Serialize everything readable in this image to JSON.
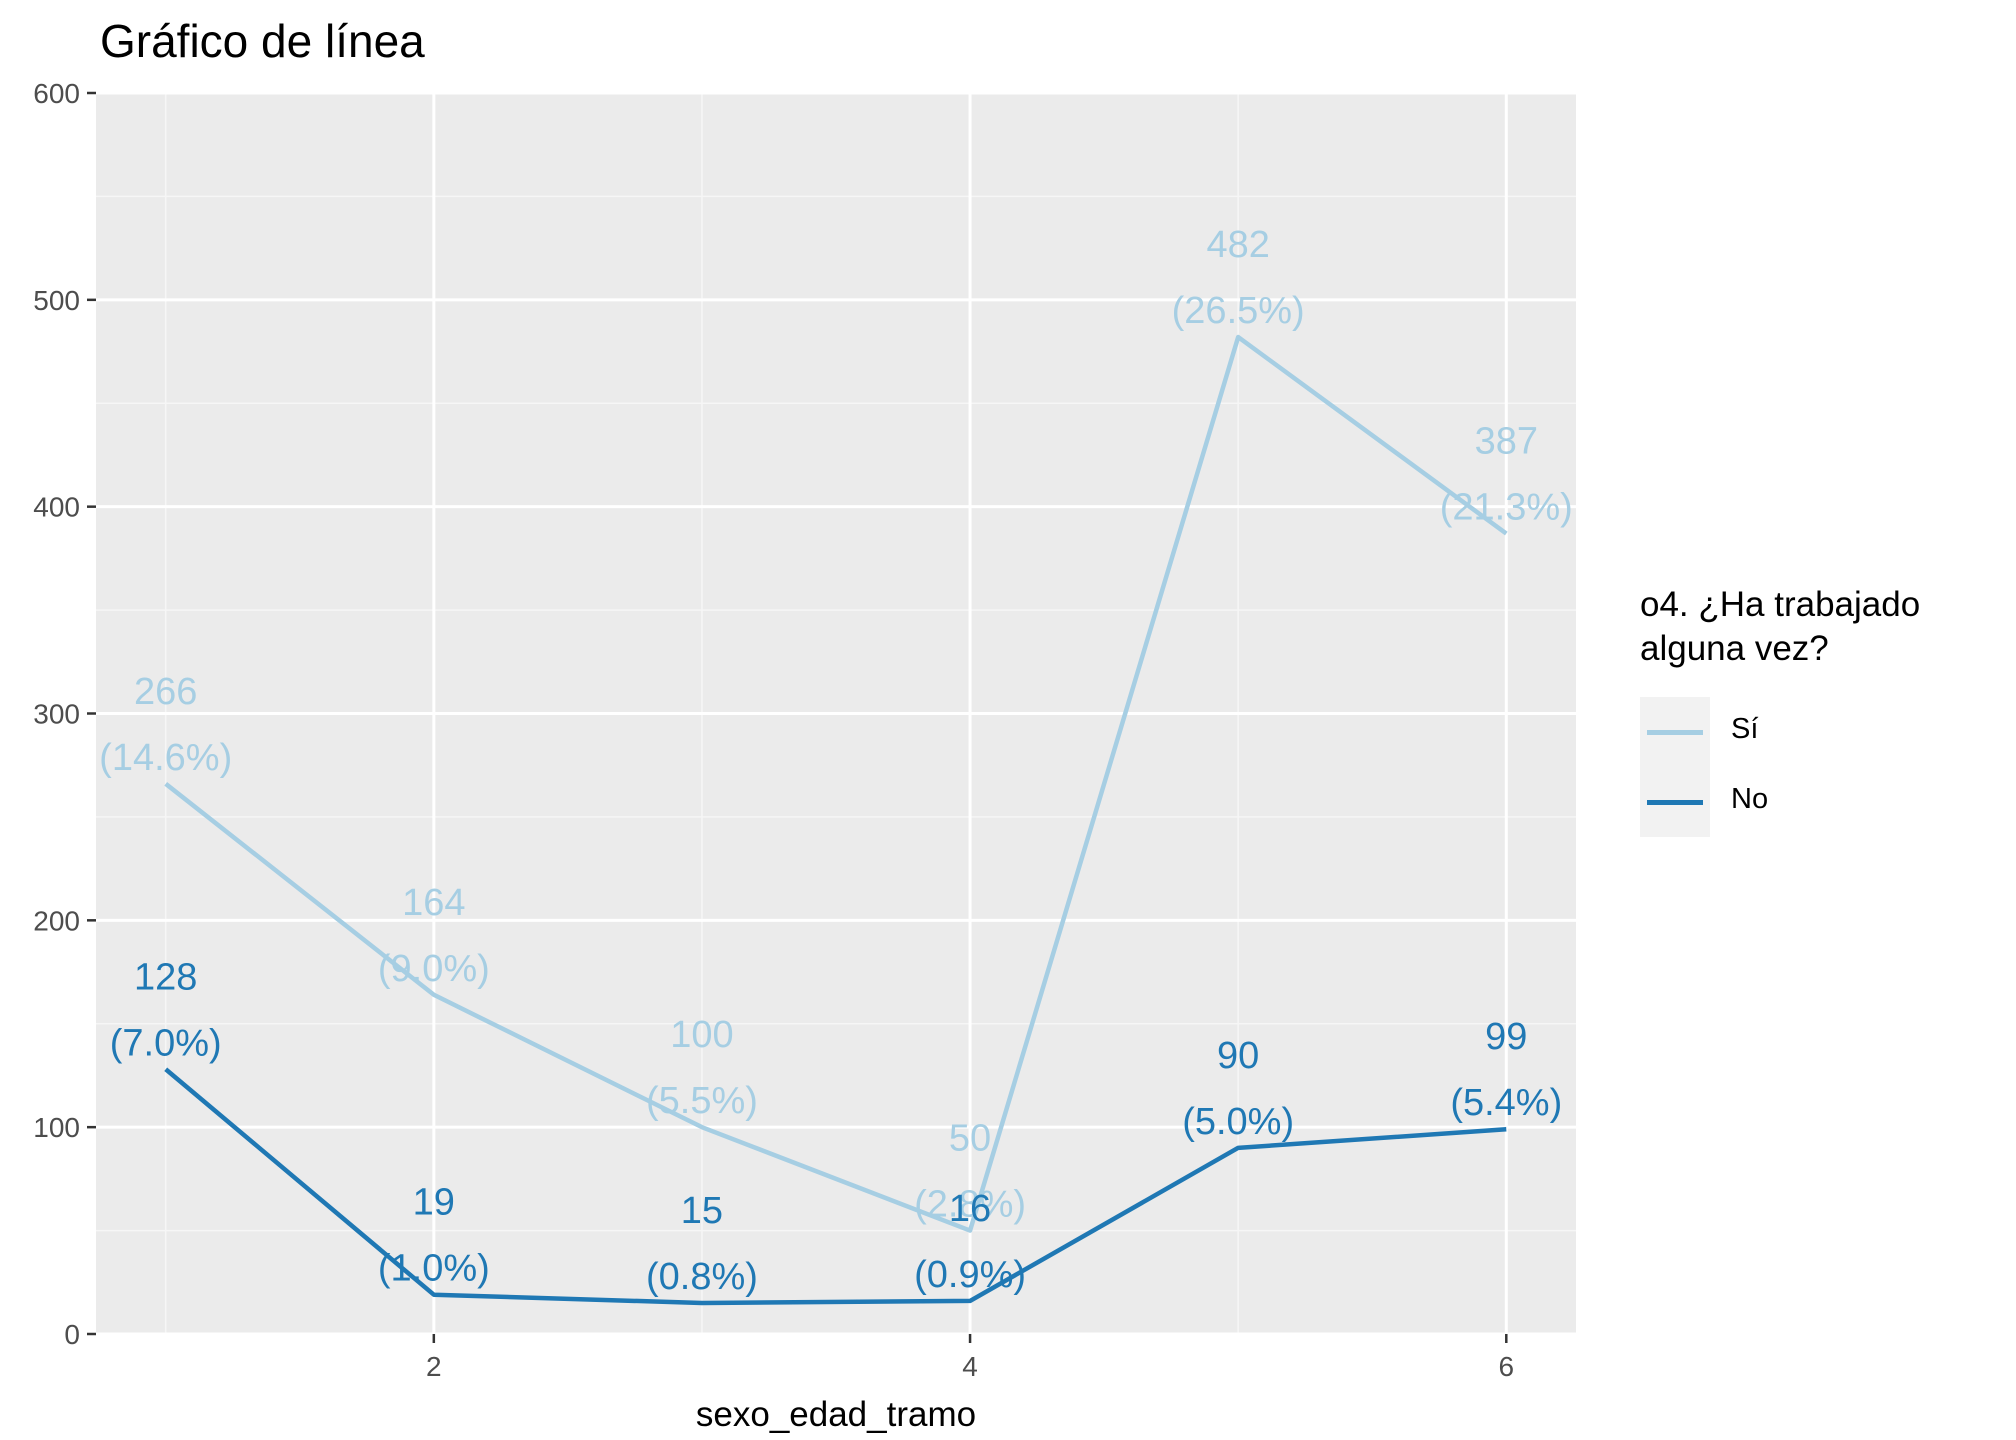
{
  "chart_data": {
    "type": "line",
    "title": "Gráfico de línea",
    "xlabel": "sexo_edad_tramo",
    "ylabel": "",
    "x": [
      1,
      2,
      3,
      4,
      5,
      6
    ],
    "xlim": [
      0.74,
      6.26
    ],
    "ylim": [
      0,
      600
    ],
    "x_ticks": [
      2,
      4,
      6
    ],
    "x_tick_labels": [
      "2",
      "4",
      "6"
    ],
    "y_ticks": [
      0,
      100,
      200,
      300,
      400,
      500,
      600
    ],
    "y_tick_labels": [
      "0",
      "100",
      "200",
      "300",
      "400",
      "500",
      "600"
    ],
    "grid": true,
    "legend_position": "right",
    "legend_title": [
      "o4. ¿Ha trabajado",
      "alguna vez?"
    ],
    "series": [
      {
        "name": "Sí",
        "color": "#a6cee3",
        "values": [
          266,
          164,
          100,
          50,
          482,
          387
        ],
        "labels": [
          [
            "266",
            "(14.6%)"
          ],
          [
            "164",
            "(9.0%)"
          ],
          [
            "100",
            "(5.5%)"
          ],
          [
            "50",
            "(2.8%)"
          ],
          [
            "482",
            "(26.5%)"
          ],
          [
            "387",
            "(21.3%)"
          ]
        ]
      },
      {
        "name": "No",
        "color": "#1f78b4",
        "values": [
          128,
          19,
          15,
          16,
          90,
          99
        ],
        "labels": [
          [
            "128",
            "(7.0%)"
          ],
          [
            "19",
            "(1.0%)"
          ],
          [
            "15",
            "(0.8%)"
          ],
          [
            "16",
            "(0.9%)"
          ],
          [
            "90",
            "(5.0%)"
          ],
          [
            "99",
            "(5.4%)"
          ]
        ]
      }
    ]
  }
}
